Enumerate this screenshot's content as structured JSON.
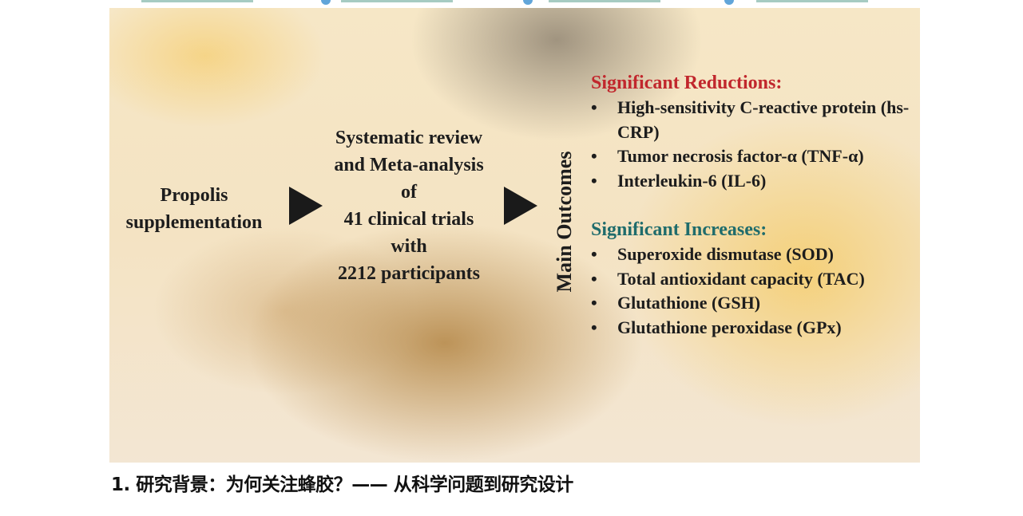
{
  "figure": {
    "input_label": "Propolis supplementation",
    "method_lines": [
      "Systematic review",
      "and Meta-analysis",
      "of",
      "41 clinical trials",
      "with",
      "2212 participants"
    ],
    "outcomes_label": "Main Outcomes",
    "reductions": {
      "title": "Significant Reductions:",
      "items": [
        "High-sensitivity C-reactive protein (hs-CRP)",
        "Tumor necrosis factor-α (TNF-α)",
        "Interleukin-6 (IL-6)"
      ]
    },
    "increases": {
      "title": "Significant Increases:",
      "items": [
        "Superoxide dismutase (SOD)",
        "Total antioxidant capacity (TAC)",
        "Glutathione (GSH)",
        "Glutathione peroxidase (GPx)"
      ]
    },
    "colors": {
      "reductions": "#c1272d",
      "increases": "#1f6c6c"
    }
  },
  "article": {
    "heading": "1. 研究背景：为何关注蜂胶？—— 从科学问题到研究设计"
  }
}
